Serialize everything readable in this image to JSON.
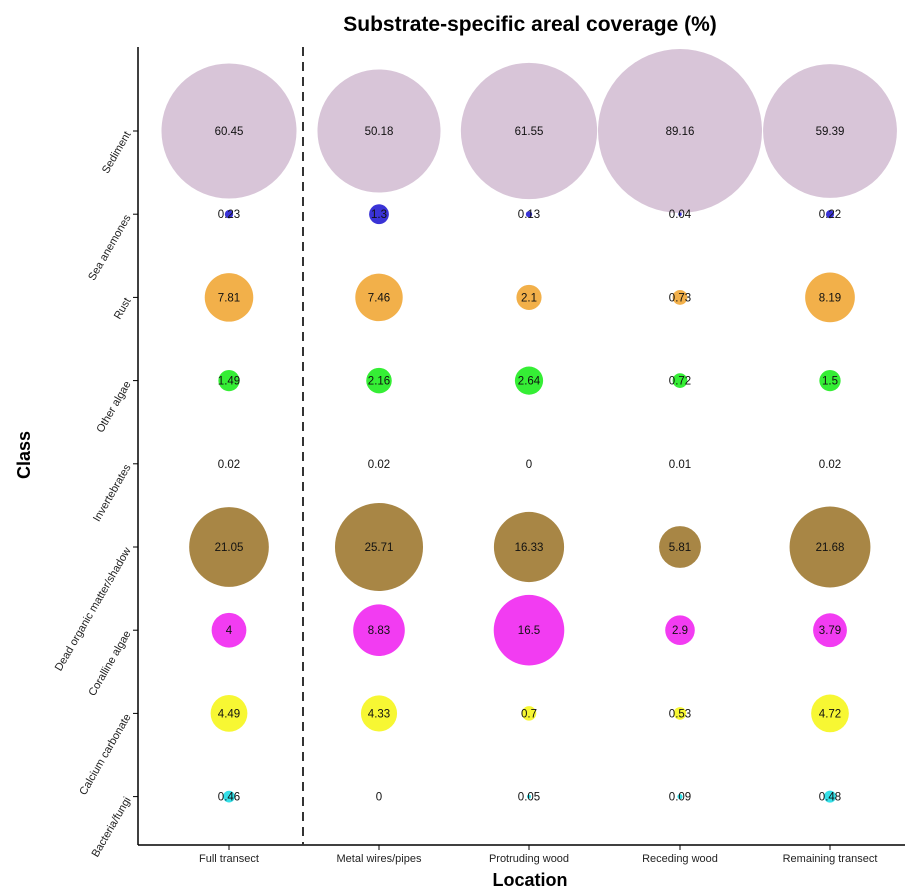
{
  "chart_data": {
    "type": "bubble",
    "title": "Substrate-specific areal coverage (%)",
    "xlabel": "Location",
    "ylabel": "Class",
    "x_categories": [
      "Full transect",
      "Metal wires/pipes",
      "Protruding wood",
      "Receding wood",
      "Remaining transect"
    ],
    "y_categories": [
      "Sediment",
      "Sea anemones",
      "Rust",
      "Other algae",
      "Invertebrates",
      "Dead organic matter/shadow",
      "Coralline algae",
      "Calcium carbonate",
      "Bacteria/fungi"
    ],
    "series": [
      {
        "name": "Sediment",
        "color": "#d8c5d8",
        "values": [
          60.45,
          50.18,
          61.55,
          89.16,
          59.39
        ]
      },
      {
        "name": "Sea anemones",
        "color": "#3a33d6",
        "values": [
          0.23,
          1.3,
          0.13,
          0.04,
          0.22
        ]
      },
      {
        "name": "Rust",
        "color": "#f2b04a",
        "values": [
          7.81,
          7.46,
          2.1,
          0.73,
          8.19
        ]
      },
      {
        "name": "Other algae",
        "color": "#35ee35",
        "values": [
          1.49,
          2.16,
          2.64,
          0.72,
          1.5
        ]
      },
      {
        "name": "Invertebrates",
        "color": "#cccccc",
        "values": [
          0.02,
          0.02,
          0,
          0.01,
          0.02
        ]
      },
      {
        "name": "Dead organic matter/shadow",
        "color": "#a88645",
        "values": [
          21.05,
          25.71,
          16.33,
          5.81,
          21.68
        ]
      },
      {
        "name": "Coralline algae",
        "color": "#f23cf2",
        "values": [
          4,
          8.83,
          16.5,
          2.9,
          3.79
        ]
      },
      {
        "name": "Calcium carbonate",
        "color": "#f7f733",
        "values": [
          4.49,
          4.33,
          0.7,
          0.53,
          4.72
        ]
      },
      {
        "name": "Bacteria/fungi",
        "color": "#35e0e8",
        "values": [
          0.46,
          0,
          0.05,
          0.09,
          0.48
        ]
      }
    ],
    "size_scale": "area proportional to value",
    "reference_line": {
      "style": "dashed",
      "between": [
        "Full transect",
        "Metal wires/pipes"
      ]
    },
    "grid": false,
    "legend": "none"
  }
}
